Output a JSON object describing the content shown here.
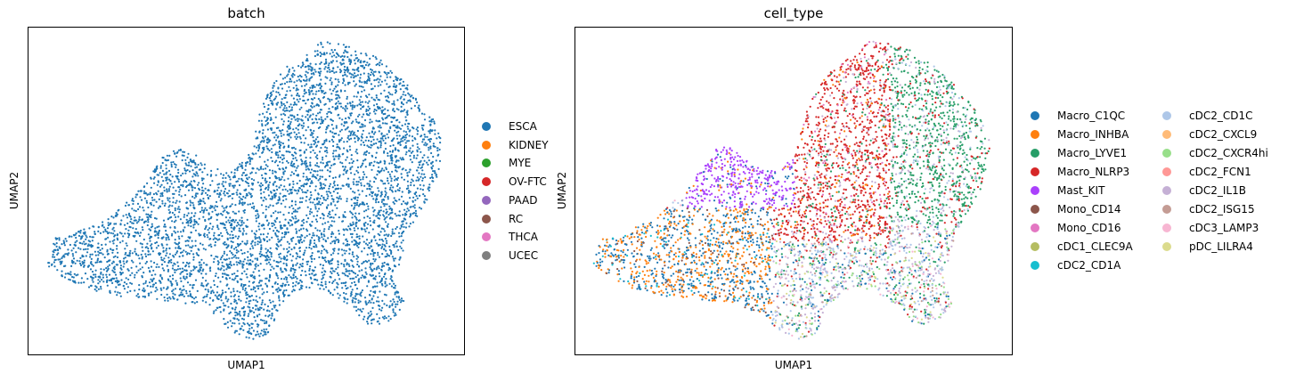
{
  "chart_data": [
    {
      "type": "scatter",
      "title": "batch",
      "xlabel": "UMAP1",
      "ylabel": "UMAP2",
      "grid": false,
      "legend_position": "right",
      "legend": [
        {
          "name": "ESCA",
          "color": "#1f77b4"
        },
        {
          "name": "KIDNEY",
          "color": "#ff7f0e"
        },
        {
          "name": "MYE",
          "color": "#2ca02c"
        },
        {
          "name": "OV-FTC",
          "color": "#d62728"
        },
        {
          "name": "PAAD",
          "color": "#9467bd"
        },
        {
          "name": "RC",
          "color": "#8c564b"
        },
        {
          "name": "THCA",
          "color": "#e377c2"
        },
        {
          "name": "UCEC",
          "color": "#7f7f7f"
        }
      ]
    },
    {
      "type": "scatter",
      "title": "cell_type",
      "xlabel": "UMAP1",
      "ylabel": "UMAP2",
      "grid": false,
      "legend_position": "right",
      "legend": [
        {
          "name": "Macro_C1QC",
          "color": "#1f77b4"
        },
        {
          "name": "Macro_INHBA",
          "color": "#ff7f0e"
        },
        {
          "name": "Macro_LYVE1",
          "color": "#279e68"
        },
        {
          "name": "Macro_NLRP3",
          "color": "#d62728"
        },
        {
          "name": "Mast_KIT",
          "color": "#aa40fc"
        },
        {
          "name": "Mono_CD14",
          "color": "#8c564b"
        },
        {
          "name": "Mono_CD16",
          "color": "#e377c2"
        },
        {
          "name": "cDC1_CLEC9A",
          "color": "#b5bd61"
        },
        {
          "name": "cDC2_CD1A",
          "color": "#17becf"
        },
        {
          "name": "cDC2_CD1C",
          "color": "#aec7e8"
        },
        {
          "name": "cDC2_CXCL9",
          "color": "#ffbb78"
        },
        {
          "name": "cDC2_CXCR4hi",
          "color": "#98df8a"
        },
        {
          "name": "cDC2_FCN1",
          "color": "#ff9896"
        },
        {
          "name": "cDC2_IL1B",
          "color": "#c5b0d5"
        },
        {
          "name": "cDC2_ISG15",
          "color": "#c49c94"
        },
        {
          "name": "cDC3_LAMP3",
          "color": "#f7b6d2"
        },
        {
          "name": "pDC_LILRA4",
          "color": "#dbdb8d"
        }
      ]
    }
  ]
}
